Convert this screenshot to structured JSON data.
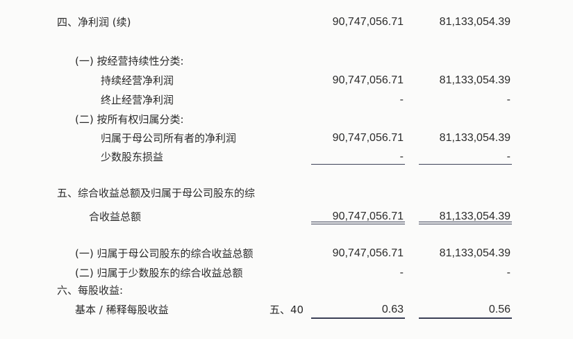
{
  "rows": [
    {
      "label": "四、净利润 (续)",
      "c1": "90,747,056.71",
      "c2": "81,133,054.39"
    },
    {
      "label": "(一) 按经营持续性分类:",
      "c1": "",
      "c2": ""
    },
    {
      "label": "持续经营净利润",
      "c1": "90,747,056.71",
      "c2": "81,133,054.39"
    },
    {
      "label": "终止经营净利润",
      "c1": "-",
      "c2": "-"
    },
    {
      "label": "(二) 按所有权归属分类:",
      "c1": "",
      "c2": ""
    },
    {
      "label": "归属于母公司所有者的净利润",
      "c1": "90,747,056.71",
      "c2": "81,133,054.39"
    },
    {
      "label": "少数股东损益",
      "c1": "-",
      "c2": "-"
    },
    {
      "label": "五、综合收益总额及归属于母公司股东的综",
      "c1": "",
      "c2": ""
    },
    {
      "label": "合收益总额",
      "c1": "90,747,056.71",
      "c2": "81,133,054.39"
    },
    {
      "label": "(一) 归属于母公司股东的综合收益总额",
      "c1": "90,747,056.71",
      "c2": "81,133,054.39"
    },
    {
      "label": "(二) 归属于少数股东的综合收益总额",
      "c1": "-",
      "c2": "-"
    },
    {
      "label": "六、每股收益:",
      "c1": "",
      "c2": ""
    },
    {
      "label": "基本 / 稀释每股收益",
      "note": "五、40",
      "c1": "0.63",
      "c2": "0.56"
    }
  ]
}
